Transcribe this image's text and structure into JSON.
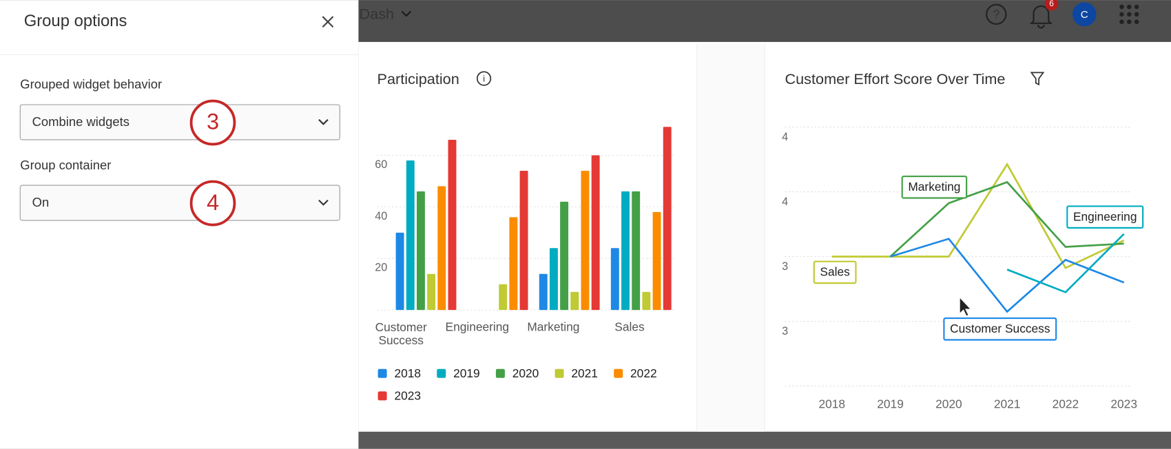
{
  "panel": {
    "title": "Group options",
    "fields": [
      {
        "label": "Grouped widget behavior",
        "value": "Combine widgets",
        "step": "3"
      },
      {
        "label": "Group container",
        "value": "On",
        "step": "4"
      }
    ]
  },
  "header": {
    "dashboard": "Dash",
    "notifications": "6",
    "avatar": "C"
  },
  "chart_data": [
    {
      "type": "bar",
      "title": "Participation",
      "categories": [
        "Customer\nSuccess",
        "Engineering",
        "Marketing",
        "Sales"
      ],
      "series": [
        {
          "name": "2018",
          "color": "#1e88e5",
          "values": [
            30,
            null,
            14,
            24
          ]
        },
        {
          "name": "2019",
          "color": "#00acc1",
          "values": [
            58,
            null,
            24,
            46
          ]
        },
        {
          "name": "2020",
          "color": "#43a047",
          "values": [
            46,
            null,
            42,
            46
          ]
        },
        {
          "name": "2021",
          "color": "#c0ca33",
          "values": [
            14,
            10,
            7,
            7
          ]
        },
        {
          "name": "2022",
          "color": "#fb8c00",
          "values": [
            48,
            36,
            54,
            38
          ]
        },
        {
          "name": "2023",
          "color": "#e53935",
          "values": [
            66,
            54,
            60,
            71
          ]
        }
      ],
      "ylim": [
        0,
        75
      ],
      "yticks": [
        20,
        40,
        60
      ],
      "grid": true
    },
    {
      "type": "line",
      "title": "Customer Effort Score Over Time",
      "categories": [
        "2018",
        "2019",
        "2020",
        "2021",
        "2022",
        "2023"
      ],
      "series": [
        {
          "name": "Sales",
          "color": "#c0ca33",
          "values": [
            3.4,
            3.4,
            3.4,
            3.97,
            3.33,
            3.5
          ]
        },
        {
          "name": "Marketing",
          "color": "#43a047",
          "values": [
            null,
            3.4,
            3.73,
            3.86,
            3.46,
            3.48
          ]
        },
        {
          "name": "Customer Success",
          "color": "#1e88e5",
          "values": [
            null,
            3.4,
            3.51,
            3.06,
            3.38,
            3.24
          ]
        },
        {
          "name": "Engineering",
          "color": "#00acc1",
          "values": [
            null,
            null,
            null,
            3.32,
            3.18,
            3.54
          ]
        }
      ],
      "ylim": [
        2.6,
        4.2
      ],
      "yticks": [
        {
          "value": 4.2,
          "label": "4"
        },
        {
          "value": 3.8,
          "label": "4"
        },
        {
          "value": 3.4,
          "label": "3"
        },
        {
          "value": 3.0,
          "label": "3"
        },
        2.6
      ],
      "grid": true
    }
  ]
}
